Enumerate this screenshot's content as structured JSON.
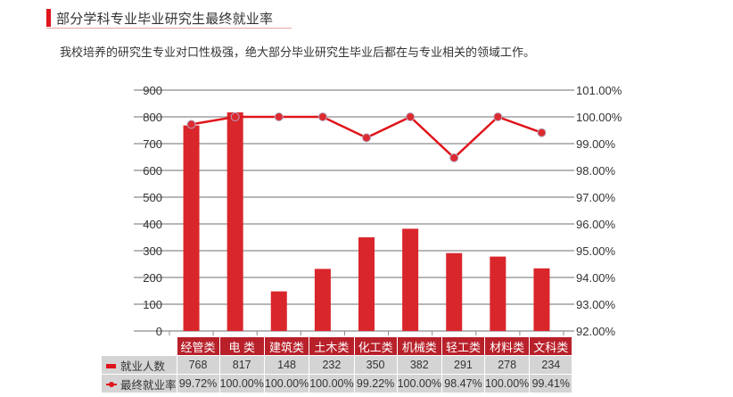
{
  "header": {
    "title": "部分学科专业毕业研究生最终就业率",
    "intro": "我校培养的研究生专业对口性极强，绝大部分毕业研究生毕业后都在与专业相关的领域工作。"
  },
  "colors": {
    "accent": "#e0141b",
    "bar": "#d9262b",
    "table_header": "#b8202a",
    "table_cell": "#d4d4d4",
    "grid": "#8c8c8c"
  },
  "table": {
    "row_labels": [
      "就业人数",
      "最终就业率"
    ],
    "categories": [
      "经管类",
      "电 类",
      "建筑类",
      "土木类",
      "化工类",
      "机械类",
      "轻工类",
      "材料类",
      "文科类"
    ],
    "employed": [
      "768",
      "817",
      "148",
      "232",
      "350",
      "382",
      "291",
      "278",
      "234"
    ],
    "rate": [
      "99.72%",
      "100.00%",
      "100.00%",
      "100.00%",
      "99.22%",
      "100.00%",
      "98.47%",
      "100.00%",
      "99.41%"
    ]
  },
  "chart_data": {
    "type": "bar",
    "title": "部分学科专业毕业研究生最终就业率",
    "categories": [
      "经管类",
      "电类",
      "建筑类",
      "土木类",
      "化工类",
      "机械类",
      "轻工类",
      "材料类",
      "文科类"
    ],
    "series": [
      {
        "name": "就业人数",
        "type": "bar",
        "axis": "left",
        "values": [
          768,
          817,
          148,
          232,
          350,
          382,
          291,
          278,
          234
        ]
      },
      {
        "name": "最终就业率",
        "type": "line",
        "axis": "right",
        "values": [
          99.72,
          100.0,
          100.0,
          100.0,
          99.22,
          100.0,
          98.47,
          100.0,
          99.41
        ]
      }
    ],
    "y_left": {
      "min": 0,
      "max": 900,
      "step": 100,
      "ticks": [
        "0",
        "100",
        "200",
        "300",
        "400",
        "500",
        "600",
        "700",
        "800",
        "900"
      ]
    },
    "y_right": {
      "min": 92,
      "max": 101,
      "step": 1,
      "ticks": [
        "92.00%",
        "93.00%",
        "94.00%",
        "95.00%",
        "96.00%",
        "97.00%",
        "98.00%",
        "99.00%",
        "100.00%",
        "101.00%"
      ]
    },
    "xlabel": "",
    "ylabel": "",
    "grid": true,
    "legend_position": "data-table"
  }
}
